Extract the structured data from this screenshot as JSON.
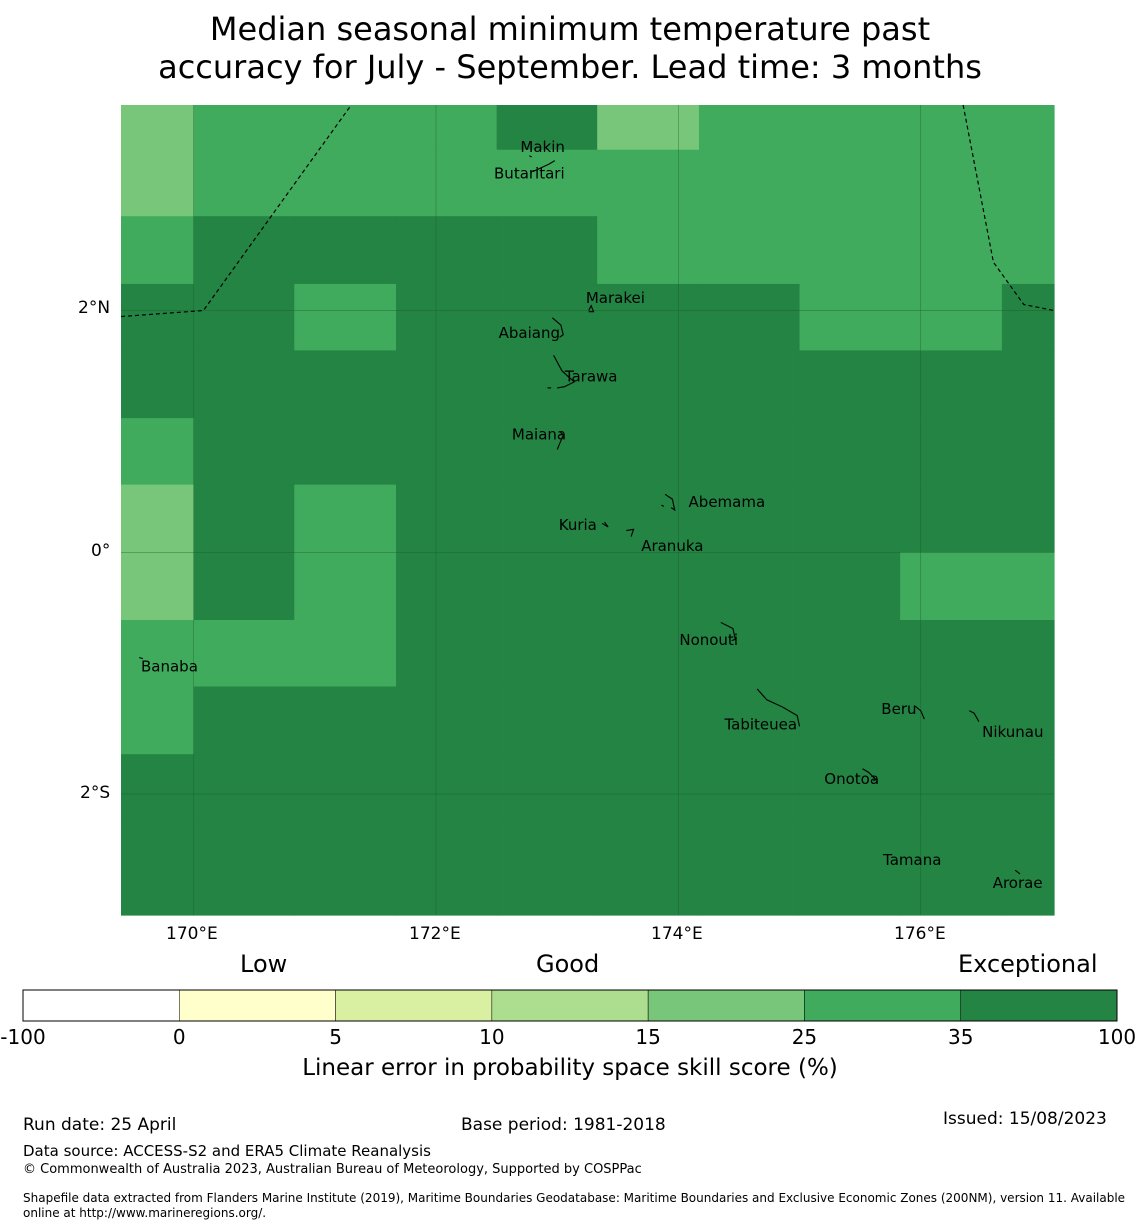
{
  "title_line1": "Median seasonal minimum temperature past",
  "title_line2": "accuracy for July - September. Lead time: 3 months",
  "lon_ticks": [
    "170°E",
    "172°E",
    "174°E",
    "176°E"
  ],
  "lat_ticks": [
    "2°N",
    "0°",
    "2°S"
  ],
  "places": [
    {
      "name": "Makin",
      "lon": 172.88,
      "lat": 3.35
    },
    {
      "name": "Butaritari",
      "lon": 172.77,
      "lat": 3.13
    },
    {
      "name": "Marakei",
      "lon": 173.48,
      "lat": 2.1
    },
    {
      "name": "Abaiang",
      "lon": 172.77,
      "lat": 1.81
    },
    {
      "name": "Tarawa",
      "lon": 173.28,
      "lat": 1.45
    },
    {
      "name": "Maiana",
      "lon": 172.85,
      "lat": 0.97
    },
    {
      "name": "Abemama",
      "lon": 174.4,
      "lat": 0.41
    },
    {
      "name": "Kuria",
      "lon": 173.17,
      "lat": 0.22
    },
    {
      "name": "Aranuka",
      "lon": 173.95,
      "lat": 0.05
    },
    {
      "name": "Nonouti",
      "lon": 174.25,
      "lat": -0.73
    },
    {
      "name": "Banaba",
      "lon": 169.8,
      "lat": -0.95
    },
    {
      "name": "Beru",
      "lon": 175.82,
      "lat": -1.3
    },
    {
      "name": "Tabiteuea",
      "lon": 174.68,
      "lat": -1.43
    },
    {
      "name": "Nikunau",
      "lon": 176.76,
      "lat": -1.49
    },
    {
      "name": "Onotoa",
      "lon": 175.43,
      "lat": -1.88
    },
    {
      "name": "Tamana",
      "lon": 175.93,
      "lat": -2.55
    },
    {
      "name": "Arorae",
      "lon": 176.8,
      "lat": -2.74
    }
  ],
  "colorbar": {
    "category_labels": {
      "low": "Low",
      "good": "Good",
      "exceptional": "Exceptional"
    },
    "tick_labels": [
      "-100",
      "0",
      "5",
      "10",
      "15",
      "25",
      "35",
      "100"
    ],
    "colors": [
      "#ffffff",
      "#ffffcc",
      "#d9f0a3",
      "#addd8e",
      "#78c679",
      "#41ab5d",
      "#238443"
    ],
    "title": "Linear error in probability space skill score (%)"
  },
  "skill_grid": {
    "lon_edges": [
      169.4,
      170.0,
      170.83,
      171.67,
      172.5,
      173.33,
      174.17,
      175.0,
      175.83,
      176.67,
      177.1
    ],
    "lat_edges": [
      3.7,
      3.33,
      2.78,
      2.22,
      1.67,
      1.11,
      0.56,
      0.0,
      -0.56,
      -1.11,
      -1.67,
      -2.22,
      -3.0
    ],
    "legend_level_index": [
      [
        4,
        5,
        5,
        5,
        6,
        4,
        5,
        5,
        5,
        5
      ],
      [
        4,
        5,
        5,
        5,
        5,
        5,
        5,
        5,
        5,
        5
      ],
      [
        5,
        6,
        6,
        6,
        6,
        5,
        5,
        5,
        5,
        5
      ],
      [
        6,
        6,
        5,
        6,
        6,
        6,
        6,
        5,
        5,
        6
      ],
      [
        6,
        6,
        6,
        6,
        6,
        6,
        6,
        6,
        6,
        6
      ],
      [
        5,
        6,
        6,
        6,
        6,
        6,
        6,
        6,
        6,
        6
      ],
      [
        4,
        6,
        5,
        6,
        6,
        6,
        6,
        6,
        6,
        6
      ],
      [
        4,
        6,
        5,
        6,
        6,
        6,
        6,
        6,
        5,
        5
      ],
      [
        5,
        5,
        5,
        6,
        6,
        6,
        6,
        6,
        6,
        6
      ],
      [
        5,
        6,
        6,
        6,
        6,
        6,
        6,
        6,
        6,
        6
      ],
      [
        6,
        6,
        6,
        6,
        6,
        6,
        6,
        6,
        6,
        6
      ],
      [
        6,
        6,
        6,
        6,
        6,
        6,
        6,
        6,
        6,
        6
      ]
    ]
  },
  "footer": {
    "run_date": "Run date: 25 April",
    "base_period": "Base period: 1981-2018",
    "issued": "Issued: 15/08/2023",
    "data_source": "Data source: ACCESS-S2 and ERA5 Climate Reanalysis",
    "copyright": "© Commonwealth of Australia 2023, Australian Bureau of Meteorology, Supported by COSPPac",
    "shapefile_line1": "Shapefile data extracted from Flanders Marine Institute (2019), Maritime Boundaries Geodatabase: Maritime Boundaries and Exclusive Economic Zones (200NM), version 11. Available",
    "shapefile_line2": "online at http://www.marineregions.org/."
  }
}
